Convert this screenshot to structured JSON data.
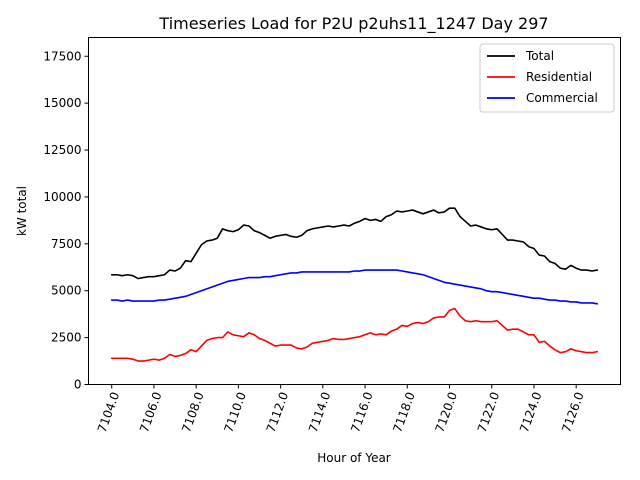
{
  "chart_data": {
    "type": "line",
    "title": "Timeseries Load for P2U p2uhs11_1247  Day 297",
    "xlabel": "Hour of Year",
    "ylabel": "kW total",
    "xlim": [
      7102.9,
      7128.1
    ],
    "ylim": [
      0,
      18500
    ],
    "xticks": [
      7104,
      7106,
      7108,
      7110,
      7112,
      7114,
      7116,
      7118,
      7120,
      7122,
      7124,
      7126
    ],
    "xtick_labels": [
      "7104.0",
      "7106.0",
      "7108.0",
      "7110.0",
      "7112.0",
      "7114.0",
      "7116.0",
      "7118.0",
      "7120.0",
      "7122.0",
      "7124.0",
      "7126.0"
    ],
    "yticks": [
      0,
      2500,
      5000,
      7500,
      10000,
      12500,
      15000,
      17500
    ],
    "ytick_labels": [
      "0",
      "2500",
      "5000",
      "7500",
      "10000",
      "12500",
      "15000",
      "17500"
    ],
    "grid": false,
    "legend_position": "top-right",
    "x_start": 7104.0,
    "x_step": 0.25,
    "series": [
      {
        "name": "Total",
        "color": "#000000",
        "values": [
          5850,
          5850,
          5800,
          5850,
          5800,
          5650,
          5700,
          5750,
          5750,
          5800,
          5850,
          6100,
          6050,
          6200,
          6600,
          6550,
          7000,
          7450,
          7650,
          7700,
          7800,
          8300,
          8200,
          8150,
          8250,
          8500,
          8450,
          8200,
          8100,
          7950,
          7800,
          7900,
          7950,
          8000,
          7900,
          7850,
          7950,
          8200,
          8300,
          8350,
          8400,
          8450,
          8400,
          8450,
          8500,
          8450,
          8600,
          8700,
          8850,
          8750,
          8800,
          8700,
          8950,
          9050,
          9250,
          9200,
          9250,
          9300,
          9200,
          9100,
          9200,
          9300,
          9150,
          9200,
          9400,
          9400,
          8950,
          8700,
          8450,
          8500,
          8400,
          8300,
          8250,
          8300,
          8000,
          7700,
          7700,
          7650,
          7600,
          7350,
          7250,
          6900,
          6850,
          6550,
          6450,
          6200,
          6150,
          6350,
          6200,
          6100,
          6100,
          6050,
          6100
        ]
      },
      {
        "name": "Residential",
        "color": "#ff0000",
        "values": [
          1400,
          1400,
          1400,
          1400,
          1350,
          1250,
          1250,
          1300,
          1350,
          1300,
          1400,
          1600,
          1500,
          1550,
          1650,
          1850,
          1750,
          2050,
          2350,
          2450,
          2500,
          2500,
          2800,
          2650,
          2600,
          2550,
          2750,
          2650,
          2450,
          2350,
          2200,
          2050,
          2100,
          2100,
          2100,
          1950,
          1900,
          2000,
          2200,
          2250,
          2300,
          2350,
          2450,
          2400,
          2400,
          2450,
          2500,
          2550,
          2650,
          2750,
          2650,
          2700,
          2650,
          2850,
          2950,
          3150,
          3100,
          3250,
          3300,
          3250,
          3350,
          3550,
          3600,
          3600,
          3950,
          4050,
          3650,
          3400,
          3350,
          3400,
          3350,
          3350,
          3350,
          3400,
          3150,
          2900,
          2950,
          2950,
          2800,
          2650,
          2650,
          2250,
          2300,
          2050,
          1850,
          1700,
          1750,
          1900,
          1800,
          1750,
          1700,
          1700,
          1750
        ]
      },
      {
        "name": "Commercial",
        "color": "#0000ff",
        "values": [
          4500,
          4500,
          4450,
          4500,
          4450,
          4450,
          4450,
          4450,
          4450,
          4500,
          4500,
          4550,
          4600,
          4650,
          4700,
          4800,
          4900,
          5000,
          5100,
          5200,
          5300,
          5400,
          5500,
          5550,
          5600,
          5650,
          5700,
          5700,
          5700,
          5750,
          5750,
          5800,
          5850,
          5900,
          5950,
          5950,
          6000,
          6000,
          6000,
          6000,
          6000,
          6000,
          6000,
          6000,
          6000,
          6000,
          6050,
          6050,
          6100,
          6100,
          6100,
          6100,
          6100,
          6100,
          6100,
          6050,
          6000,
          5950,
          5900,
          5850,
          5750,
          5650,
          5550,
          5450,
          5400,
          5350,
          5300,
          5250,
          5200,
          5150,
          5100,
          5000,
          4950,
          4950,
          4900,
          4850,
          4800,
          4750,
          4700,
          4650,
          4600,
          4600,
          4550,
          4500,
          4500,
          4450,
          4450,
          4400,
          4400,
          4350,
          4350,
          4350,
          4300
        ]
      }
    ]
  }
}
